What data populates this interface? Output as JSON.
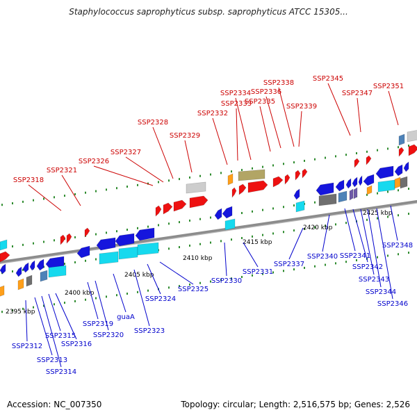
{
  "title": "Staphylococcus saprophyticus subsp. saprophyticus ATCC 15305...",
  "footer": {
    "accession": "Accession: NC_007350",
    "stats": "Topology: circular; Length: 2,516,575 bp; Genes: 2,526"
  },
  "colors": {
    "upper_label": "#cc0000",
    "lower_label": "#0000cc",
    "backbone": "#8c8c8c",
    "tick": "#2e8b2e"
  },
  "scale_labels": [
    "2395 kbp",
    "2400 kbp",
    "2405 kbp",
    "2410 kbp",
    "2415 kbp",
    "2420 kbp",
    "2425 kbp"
  ],
  "upper_labels": [
    "SSP2318",
    "SSP2321",
    "SSP2326",
    "SSP2327",
    "SSP2328",
    "SSP2329",
    "SSP2332",
    "SSP2333",
    "SSP2334",
    "SSP2335",
    "SSP2336",
    "SSP2338",
    "SSP2339",
    "SSP2345",
    "SSP2347",
    "SSP2351"
  ],
  "lower_labels": [
    "SSP2312",
    "SSP2313",
    "SSP2314",
    "SSP2315",
    "SSP2316",
    "SSP2319",
    "SSP2320",
    "guaA",
    "SSP2323",
    "SSP2324",
    "SSP2325",
    "SSP2330",
    "SSP2331",
    "SSP2337",
    "SSP2340",
    "SSP2341",
    "SSP2342",
    "SSP2343",
    "SSP2344",
    "SSP2346",
    "SSP2348"
  ]
}
